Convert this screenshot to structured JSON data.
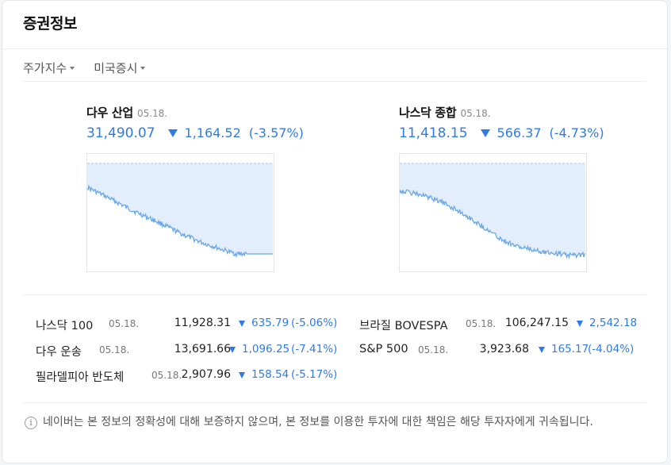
{
  "card": {
    "title": "증권정보"
  },
  "tabs": [
    {
      "label": "주가지수"
    },
    {
      "label": "미국증시"
    }
  ],
  "main_indices": [
    {
      "name": "다우 산업",
      "date": "05.18.",
      "value": "31,490.07",
      "change": "1,164.52",
      "rate": "(-3.57%)",
      "direction": "down"
    },
    {
      "name": "나스닥 종합",
      "date": "05.18.",
      "value": "11,418.15",
      "change": "566.37",
      "rate": "(-4.73%)",
      "direction": "down"
    }
  ],
  "sub_indices": [
    {
      "name": "나스닥 100",
      "date": "05.18.",
      "value": "11,928.31",
      "change": "635.79",
      "rate": "(-5.06%)",
      "direction": "down"
    },
    {
      "name": "브라질 BOVESPA",
      "date": "05.18.",
      "value": "106,247.15",
      "change": "2,542.18",
      "rate": "",
      "direction": "down"
    },
    {
      "name": "다우 운송",
      "date": "05.18.",
      "value": "13,691.66",
      "change": "1,096.25",
      "rate": "(-7.41%)",
      "direction": "down"
    },
    {
      "name": "S&P 500",
      "date": "05.18.",
      "value": "3,923.68",
      "change": "165.17",
      "rate": "(-4.04%)",
      "direction": "down"
    },
    {
      "name": "필라델피아 반도체",
      "date": "05.18.",
      "value": "2,907.96",
      "change": "158.54",
      "rate": "(-5.17%)",
      "direction": "down"
    }
  ],
  "notice": {
    "text": "네이버는 본 정보의 정확성에 대해 보증하지 않으며, 본 정보를 이용한 투자에 대한 책임은 해당 투자자에게 귀속됩니다."
  },
  "colors": {
    "down": "#2f7be5",
    "chart_fill": "#e3eefc",
    "chart_line": "#69a7ea",
    "baseline": "#a9c6ec"
  }
}
